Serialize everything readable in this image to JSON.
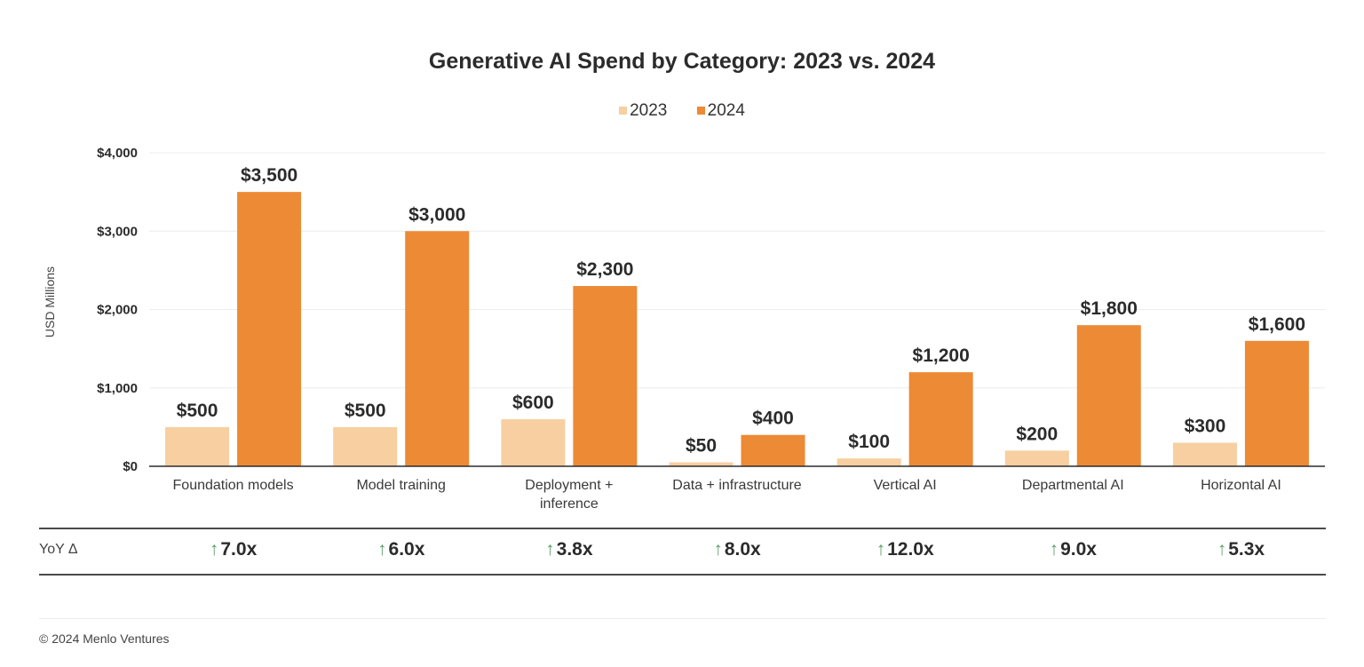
{
  "chart_data": {
    "type": "bar",
    "title": "Generative AI Spend by Category: 2023 vs. 2024",
    "xlabel": "",
    "ylabel": "USD Millions",
    "ylim": [
      0,
      4000
    ],
    "yticks": [
      0,
      1000,
      2000,
      3000,
      4000
    ],
    "ytick_labels": [
      "$0",
      "$1,000",
      "$2,000",
      "$3,000",
      "$4,000"
    ],
    "grid": true,
    "legend_position": "top-center",
    "categories": [
      "Foundation models",
      "Model training",
      "Deployment + inference",
      "Data + infrastructure",
      "Vertical AI",
      "Departmental AI",
      "Horizontal AI"
    ],
    "category_lines": [
      [
        "Foundation models"
      ],
      [
        "Model training"
      ],
      [
        "Deployment +",
        "inference"
      ],
      [
        "Data + infrastructure"
      ],
      [
        "Vertical AI"
      ],
      [
        "Departmental AI"
      ],
      [
        "Horizontal AI"
      ]
    ],
    "series": [
      {
        "name": "2023",
        "color": "#f7cfa1",
        "values": [
          500,
          500,
          600,
          50,
          100,
          200,
          300
        ],
        "labels": [
          "$500",
          "$500",
          "$600",
          "$50",
          "$100",
          "$200",
          "$300"
        ]
      },
      {
        "name": "2024",
        "color": "#ec8a35",
        "values": [
          3500,
          3000,
          2300,
          400,
          1200,
          1800,
          1600
        ],
        "labels": [
          "$3,500",
          "$3,000",
          "$2,300",
          "$400",
          "$1,200",
          "$1,800",
          "$1,600"
        ]
      }
    ]
  },
  "yoy": {
    "label": "YoY Δ",
    "arrow_icon": "↑",
    "arrow_color": "#5c9e6a",
    "values": [
      "7.0x",
      "6.0x",
      "3.8x",
      "8.0x",
      "12.0x",
      "9.0x",
      "5.3x"
    ]
  },
  "footer": {
    "copyright": "© 2024 Menlo Ventures"
  }
}
